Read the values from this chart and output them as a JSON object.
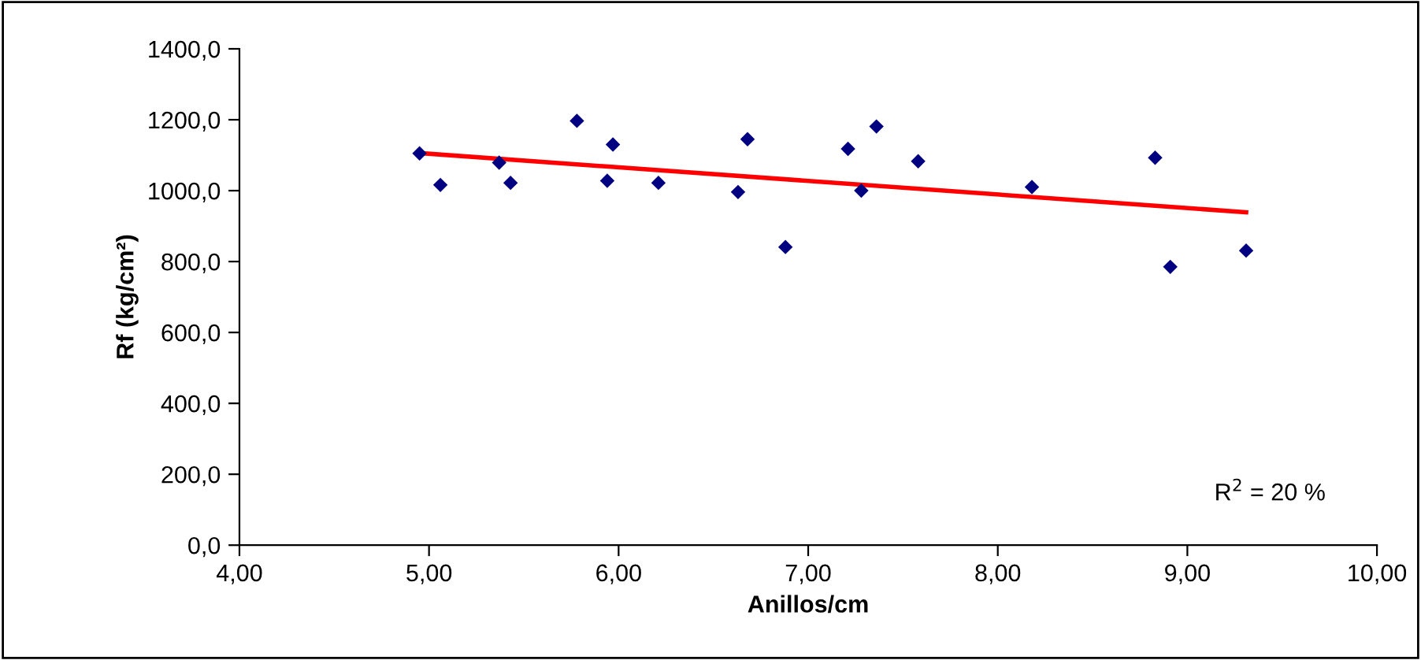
{
  "chart_data": {
    "type": "scatter",
    "xlabel": "Anillos/cm",
    "ylabel": "Rf (kg/cm²)",
    "annotations": [
      "R$^{2}$ = 20 %"
    ],
    "grid": false,
    "legend": false,
    "xlim": [
      4,
      10
    ],
    "xticks": [
      {
        "value": 4,
        "label": "4,00"
      },
      {
        "value": 5,
        "label": "5,00"
      },
      {
        "value": 6,
        "label": "6,00"
      },
      {
        "value": 7,
        "label": "7,00"
      },
      {
        "value": 8,
        "label": "8,00"
      },
      {
        "value": 9,
        "label": "9,00"
      },
      {
        "value": 10,
        "label": "10,00"
      }
    ],
    "ylim": [
      0,
      1400
    ],
    "yticks": [
      {
        "value": 0,
        "label": "0,0"
      },
      {
        "value": 200,
        "label": "200,0"
      },
      {
        "value": 400,
        "label": "400,0"
      },
      {
        "value": 600,
        "label": "600,0"
      },
      {
        "value": 800,
        "label": "800,0"
      },
      {
        "value": 1000,
        "label": "1000,0"
      },
      {
        "value": 1200,
        "label": "1200,0"
      },
      {
        "value": 1400,
        "label": "1400,0"
      }
    ],
    "series": [
      {
        "marker": "diamond",
        "color": "#000080",
        "x": [
          4.95,
          5.06,
          5.37,
          5.43,
          5.78,
          5.94,
          5.97,
          6.21,
          6.63,
          6.68,
          6.88,
          7.21,
          7.28,
          7.36,
          7.58,
          8.18,
          8.83,
          8.91,
          9.31
        ],
        "values": [
          1105,
          1016,
          1079,
          1022,
          1197,
          1028,
          1130,
          1022,
          996,
          1145,
          841,
          1118,
          1000,
          1181,
          1083,
          1010,
          1093,
          785,
          831
        ]
      },
      {
        "type": "line",
        "marker": "none",
        "color": "#ff0000",
        "x": [
          4.95,
          9.31
        ],
        "values": [
          1106,
          939
        ]
      }
    ]
  }
}
